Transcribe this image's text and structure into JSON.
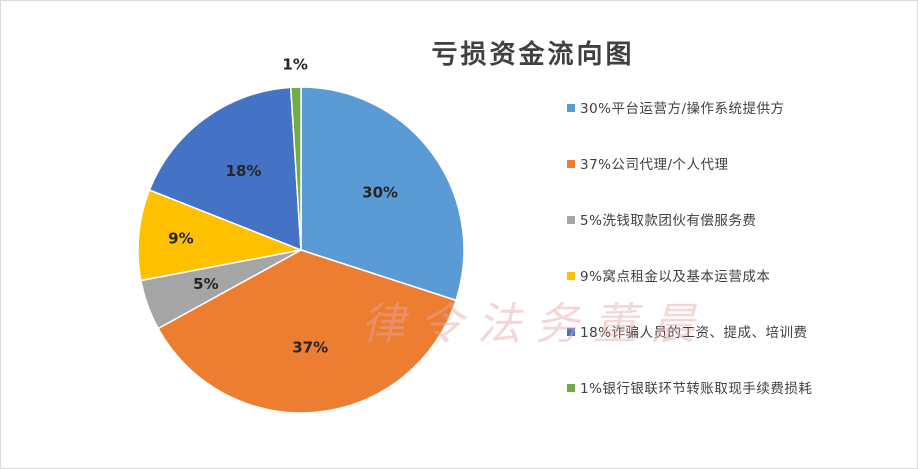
{
  "chart_data": {
    "type": "pie",
    "title": "亏损资金流向图",
    "categories": [
      "平台运营方/操作系统提供方",
      "公司代理/个人代理",
      "洗钱取款团伙有偿服务费",
      "窝点租金以及基本运营成本",
      "诈骗人员的工资、提成、培训费",
      "银行银联环节转账取现手续费损耗"
    ],
    "values": [
      30,
      37,
      5,
      9,
      18,
      1
    ],
    "slice_labels": [
      "30%",
      "37%",
      "5%",
      "9%",
      "18%",
      "1%"
    ],
    "legend_labels": [
      "30%平台运营方/操作系统提供方",
      "37%公司代理/个人代理",
      "5%洗钱取款团伙有偿服务费",
      "9%窝点租金以及基本运营成本",
      "18%诈骗人员的工资、提成、培训费",
      "1%银行银联环节转账取现手续费损耗"
    ],
    "colors": [
      "#5b9bd5",
      "#ed7d31",
      "#a5a5a5",
      "#ffc000",
      "#4472c4",
      "#70ad47"
    ],
    "start_angle_deg": 0,
    "direction": "clockwise",
    "legend_position": "right"
  },
  "watermark": "律令法务董晨"
}
